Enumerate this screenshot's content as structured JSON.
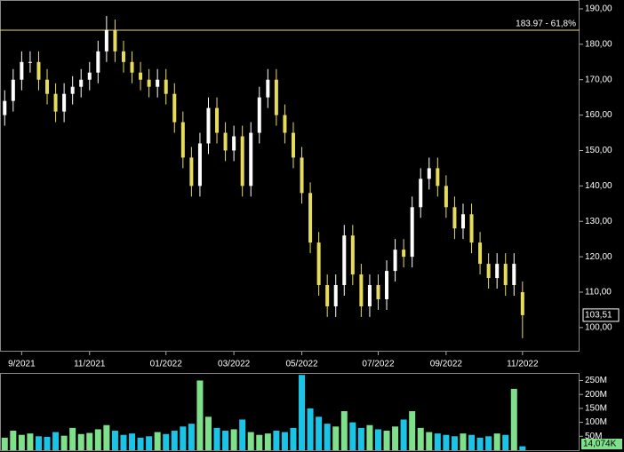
{
  "chart_data": [
    {
      "type": "candlestick",
      "categories": [
        null,
        null,
        "9/2021",
        null,
        null,
        null,
        null,
        null,
        null,
        null,
        "11/2021",
        null,
        null,
        null,
        null,
        null,
        null,
        null,
        null,
        "01/2022",
        null,
        null,
        null,
        null,
        null,
        null,
        null,
        "03/2022",
        null,
        null,
        null,
        null,
        null,
        null,
        null,
        "05/2022",
        null,
        null,
        null,
        null,
        null,
        null,
        null,
        null,
        "07/2022",
        null,
        null,
        null,
        null,
        null,
        null,
        null,
        "09/2022",
        null,
        null,
        null,
        null,
        null,
        null,
        null,
        null,
        "11/2022"
      ],
      "open": [
        160,
        164,
        170,
        175,
        175,
        170,
        166,
        161,
        166,
        168,
        170,
        172,
        178,
        184,
        178,
        175,
        172,
        170,
        168,
        170,
        166,
        158,
        148,
        140,
        152,
        162,
        155,
        150,
        154,
        140,
        155,
        165,
        170,
        160,
        155,
        148,
        138,
        124,
        112,
        106,
        112,
        126,
        115,
        106,
        112,
        108,
        116,
        122,
        120,
        134,
        142,
        145,
        140,
        134,
        128,
        132,
        124,
        118,
        114,
        118,
        112,
        110
      ],
      "high": [
        167,
        173,
        178,
        178,
        178,
        173,
        169,
        169,
        171,
        173,
        175,
        181,
        188,
        187,
        181,
        178,
        175,
        173,
        173,
        173,
        169,
        161,
        151,
        155,
        165,
        165,
        158,
        157,
        157,
        158,
        168,
        173,
        173,
        163,
        158,
        151,
        141,
        127,
        115,
        115,
        129,
        129,
        118,
        115,
        115,
        119,
        125,
        125,
        137,
        145,
        148,
        148,
        143,
        137,
        135,
        135,
        127,
        121,
        121,
        121,
        121,
        113
      ],
      "low": [
        157,
        161,
        167,
        172,
        167,
        163,
        158,
        158,
        163,
        165,
        167,
        169,
        175,
        175,
        172,
        169,
        167,
        165,
        165,
        163,
        155,
        145,
        137,
        137,
        149,
        152,
        147,
        147,
        137,
        137,
        152,
        162,
        157,
        152,
        145,
        135,
        121,
        109,
        103,
        103,
        109,
        112,
        103,
        103,
        105,
        105,
        113,
        117,
        117,
        131,
        139,
        137,
        131,
        125,
        125,
        121,
        115,
        111,
        111,
        109,
        109,
        97
      ],
      "close": [
        164,
        170,
        175,
        175,
        170,
        166,
        161,
        166,
        168,
        170,
        172,
        178,
        184,
        178,
        175,
        172,
        170,
        168,
        170,
        166,
        158,
        148,
        140,
        152,
        162,
        155,
        150,
        154,
        140,
        155,
        165,
        170,
        160,
        155,
        148,
        138,
        124,
        112,
        106,
        112,
        126,
        115,
        106,
        112,
        108,
        116,
        122,
        120,
        134,
        142,
        145,
        140,
        134,
        128,
        132,
        124,
        118,
        114,
        118,
        112,
        118,
        103.51
      ],
      "up_color": "#ffffff",
      "down_color": "#e6dc5a",
      "ylim": [
        93.2,
        192.5
      ],
      "yticks": [
        {
          "value": 100,
          "label": "100,00"
        },
        {
          "value": 110,
          "label": "110,00"
        },
        {
          "value": 120,
          "label": "120,00"
        },
        {
          "value": 130,
          "label": "130,00"
        },
        {
          "value": 140,
          "label": "140,00"
        },
        {
          "value": 150,
          "label": "150,00"
        },
        {
          "value": 160,
          "label": "160,00"
        },
        {
          "value": 170,
          "label": "170,00"
        },
        {
          "value": 180,
          "label": "180,00"
        },
        {
          "value": 190,
          "label": "190,00"
        }
      ],
      "fib_level": {
        "value": 183.97,
        "label": "183.97 - 61,8%",
        "color": "#e6dc5a"
      },
      "last_price": {
        "value": 103.51,
        "label": "103,51"
      }
    },
    {
      "type": "volume",
      "values": [
        45,
        70,
        55,
        60,
        50,
        48,
        65,
        52,
        80,
        58,
        62,
        75,
        90,
        70,
        55,
        60,
        45,
        50,
        65,
        58,
        70,
        85,
        95,
        250,
        120,
        80,
        70,
        75,
        110,
        65,
        55,
        60,
        70,
        65,
        80,
        270,
        150,
        120,
        95,
        85,
        140,
        100,
        80,
        90,
        75,
        70,
        85,
        110,
        140,
        80,
        65,
        60,
        55,
        50,
        60,
        55,
        45,
        50,
        60,
        55,
        220,
        14.074
      ],
      "up_color": "#7ee08a",
      "down_color": "#19c4e6",
      "ylim": [
        0,
        277
      ],
      "yticks": [
        {
          "value": 50,
          "label": "50M"
        },
        {
          "value": 100,
          "label": "100M"
        },
        {
          "value": 150,
          "label": "150M"
        },
        {
          "value": 200,
          "label": "200M"
        },
        {
          "value": 250,
          "label": "250M"
        }
      ],
      "last_volume": {
        "value": 14.074,
        "label": "14,074K"
      }
    }
  ]
}
